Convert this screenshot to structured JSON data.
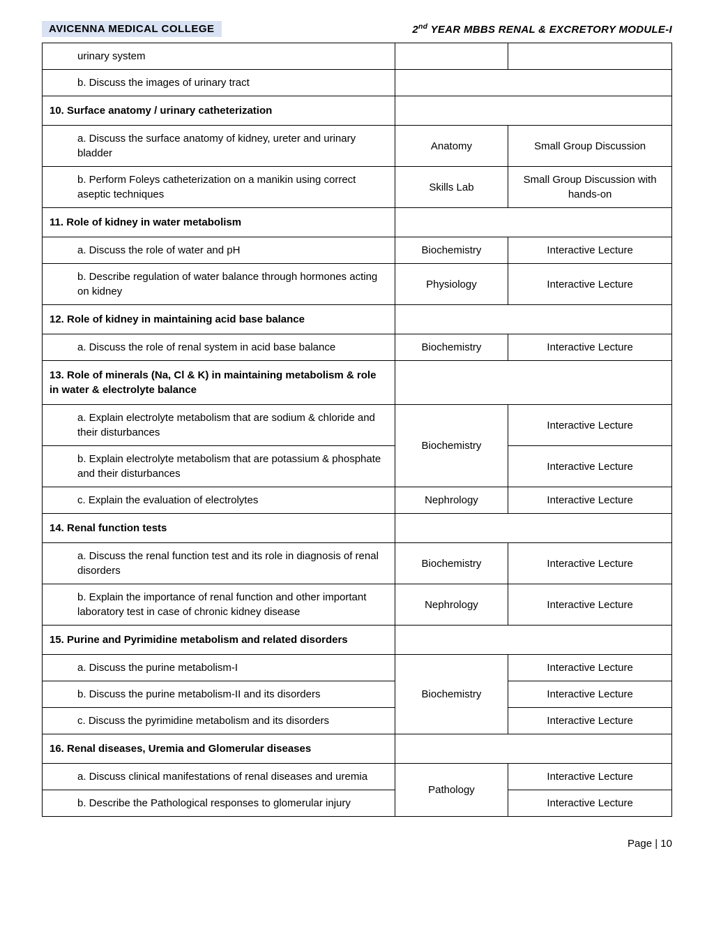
{
  "header": {
    "college": "AVICENNA MEDICAL COLLEGE",
    "module_prefix": "2",
    "module_sup": "nd",
    "module_rest": " YEAR MBBS RENAL &  EXCRETORY MODULE-I"
  },
  "rows": [
    {
      "type": "sub",
      "text": "urinary system",
      "indent": "a",
      "subject": "",
      "method": "",
      "rowspan_subject": 1,
      "rowspan_method": 1,
      "show_subject": true,
      "show_method": true
    },
    {
      "type": "sub",
      "text": "b. Discuss the images of urinary tract",
      "indent": "a",
      "subject": "",
      "method": "",
      "rowspan_subject": 1,
      "rowspan_method": 1,
      "show_subject": false,
      "show_method": false,
      "merge_right": true
    },
    {
      "type": "section",
      "text": "10. Surface anatomy /   urinary catheterization"
    },
    {
      "type": "sub",
      "text": "a. Discuss the surface anatomy of kidney, ureter and urinary bladder",
      "indent": "a",
      "subject": "Anatomy",
      "method": "Small Group Discussion",
      "rowspan_subject": 1,
      "rowspan_method": 1,
      "show_subject": true,
      "show_method": true
    },
    {
      "type": "sub",
      "text": "b. Perform Foleys catheterization on a manikin using correct aseptic techniques",
      "indent": "a",
      "subject": "Skills Lab",
      "method": "Small Group Discussion with hands-on",
      "rowspan_subject": 1,
      "rowspan_method": 1,
      "show_subject": true,
      "show_method": true
    },
    {
      "type": "section",
      "text": "11. Role of kidney in water metabolism"
    },
    {
      "type": "sub",
      "text": "a. Discuss the role of water and pH",
      "indent": "a",
      "subject": "Biochemistry",
      "method": "Interactive Lecture",
      "rowspan_subject": 1,
      "rowspan_method": 1,
      "show_subject": true,
      "show_method": true
    },
    {
      "type": "sub",
      "text": "b. Describe regulation of water balance through hormones acting on kidney",
      "indent": "a",
      "subject": "Physiology",
      "method": "Interactive Lecture",
      "rowspan_subject": 1,
      "rowspan_method": 1,
      "show_subject": true,
      "show_method": true
    },
    {
      "type": "section",
      "text": "12. Role of kidney in maintaining acid base balance"
    },
    {
      "type": "sub",
      "text": "a. Discuss the role of renal system in acid base balance",
      "indent": "a",
      "subject": "Biochemistry",
      "method": "Interactive Lecture",
      "rowspan_subject": 1,
      "rowspan_method": 1,
      "show_subject": true,
      "show_method": true
    },
    {
      "type": "section",
      "text": "13. Role of minerals (Na, Cl &  K) in maintaining metabolism & role in water & electrolyte balance"
    },
    {
      "type": "sub",
      "text": "a. Explain electrolyte metabolism that are sodium & chloride and their disturbances",
      "indent": "a",
      "subject": "Biochemistry",
      "method": "Interactive Lecture",
      "rowspan_subject": 2,
      "rowspan_method": 1,
      "show_subject": true,
      "show_method": true
    },
    {
      "type": "sub",
      "text": "b. Explain electrolyte metabolism that are potassium & phosphate and their disturbances",
      "indent": "a",
      "subject": "",
      "method": "Interactive Lecture",
      "rowspan_subject": 0,
      "rowspan_method": 1,
      "show_subject": false,
      "show_method": true
    },
    {
      "type": "sub",
      "text": "c.    Explain the evaluation of electrolytes",
      "indent": "c",
      "subject": "Nephrology",
      "method": "Interactive Lecture",
      "rowspan_subject": 1,
      "rowspan_method": 1,
      "show_subject": true,
      "show_method": true
    },
    {
      "type": "section",
      "text": "14. Renal function tests"
    },
    {
      "type": "sub",
      "text": "a. Discuss the renal function test and its role in diagnosis of renal disorders",
      "indent": "a",
      "subject": "Biochemistry",
      "method": "Interactive Lecture",
      "rowspan_subject": 1,
      "rowspan_method": 1,
      "show_subject": true,
      "show_method": true
    },
    {
      "type": "sub",
      "text": "b. Explain the importance of renal function and other important laboratory test in case of chronic kidney disease",
      "indent": "a",
      "subject": "Nephrology",
      "method": "Interactive Lecture",
      "rowspan_subject": 1,
      "rowspan_method": 1,
      "show_subject": true,
      "show_method": true
    },
    {
      "type": "section",
      "text": "15. Purine and Pyrimidine metabolism and related disorders"
    },
    {
      "type": "sub",
      "text": "a. Discuss the purine  metabolism-I",
      "indent": "a",
      "subject": "Biochemistry",
      "method": "Interactive Lecture",
      "rowspan_subject": 3,
      "rowspan_method": 1,
      "show_subject": true,
      "show_method": true
    },
    {
      "type": "sub",
      "text": "b. Discuss the purine metabolism-II and its disorders",
      "indent": "a",
      "subject": "",
      "method": "Interactive Lecture",
      "rowspan_subject": 0,
      "rowspan_method": 1,
      "show_subject": false,
      "show_method": true
    },
    {
      "type": "sub",
      "text": "c.    Discuss the pyrimidine metabolism and its disorders",
      "indent": "c",
      "subject": "",
      "method": "Interactive Lecture",
      "rowspan_subject": 0,
      "rowspan_method": 1,
      "show_subject": false,
      "show_method": true
    },
    {
      "type": "section",
      "text": "16. Renal diseases, Uremia and Glomerular diseases"
    },
    {
      "type": "sub",
      "text": "a. Discuss clinical manifestations of renal diseases and uremia",
      "indent": "a",
      "subject": "Pathology",
      "method": "Interactive Lecture",
      "rowspan_subject": 2,
      "rowspan_method": 1,
      "show_subject": true,
      "show_method": true
    },
    {
      "type": "sub",
      "text": "b. Describe the Pathological responses to glomerular injury",
      "indent": "a",
      "subject": "",
      "method": "Interactive Lecture",
      "rowspan_subject": 0,
      "rowspan_method": 1,
      "show_subject": false,
      "show_method": true
    }
  ],
  "footer": {
    "page_label": "Page |  10"
  }
}
